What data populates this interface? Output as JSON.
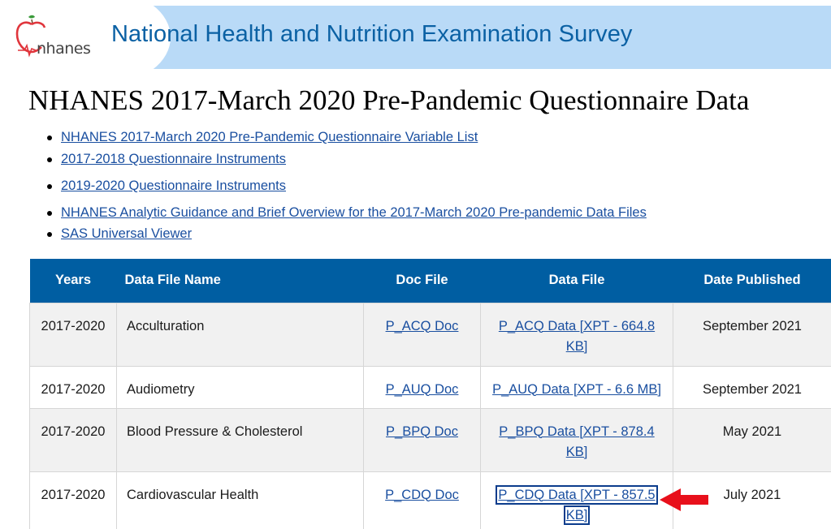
{
  "header": {
    "logo_text": "nhanes",
    "title": "National Health and Nutrition Examination Survey",
    "colors": {
      "band": "#b9daf7",
      "title": "#0b61a4",
      "apple": "#e0353c",
      "leaf": "#3a9a3a"
    }
  },
  "page": {
    "title": "NHANES 2017-March 2020 Pre-Pandemic Questionnaire Data"
  },
  "links": [
    {
      "label": "NHANES 2017-March 2020 Pre-Pandemic Questionnaire Variable List"
    },
    {
      "label": "2017-2018 Questionnaire Instruments"
    },
    {
      "label": "2019-2020 Questionnaire Instruments"
    },
    {
      "label": "NHANES Analytic Guidance and Brief Overview for the 2017-March 2020 Pre-pandemic Data Files"
    },
    {
      "label": "SAS Universal Viewer"
    }
  ],
  "table": {
    "headers": {
      "years": "Years",
      "name": "Data File Name",
      "doc": "Doc File",
      "data": "Data File",
      "date": "Date Published"
    },
    "header_color": "#005ea2",
    "rows": [
      {
        "years": "2017-2020",
        "name": "Acculturation",
        "doc": "P_ACQ Doc",
        "data": "P_ACQ Data [XPT - 664.8 KB]",
        "date": "September 2021"
      },
      {
        "years": "2017-2020",
        "name": "Audiometry",
        "doc": "P_AUQ Doc",
        "data": "P_AUQ Data [XPT - 6.6 MB]",
        "date": "September 2021"
      },
      {
        "years": "2017-2020",
        "name": "Blood Pressure & Cholesterol",
        "doc": "P_BPQ Doc",
        "data": "P_BPQ Data [XPT - 878.4 KB]",
        "date": "May 2021"
      },
      {
        "years": "2017-2020",
        "name": "Cardiovascular Health",
        "doc": "P_CDQ Doc",
        "data": "P_CDQ Data [XPT - 857.5 KB]",
        "date": "July 2021"
      }
    ]
  },
  "annotation": {
    "icon": "arrow-left-icon",
    "color": "#e8101b"
  }
}
